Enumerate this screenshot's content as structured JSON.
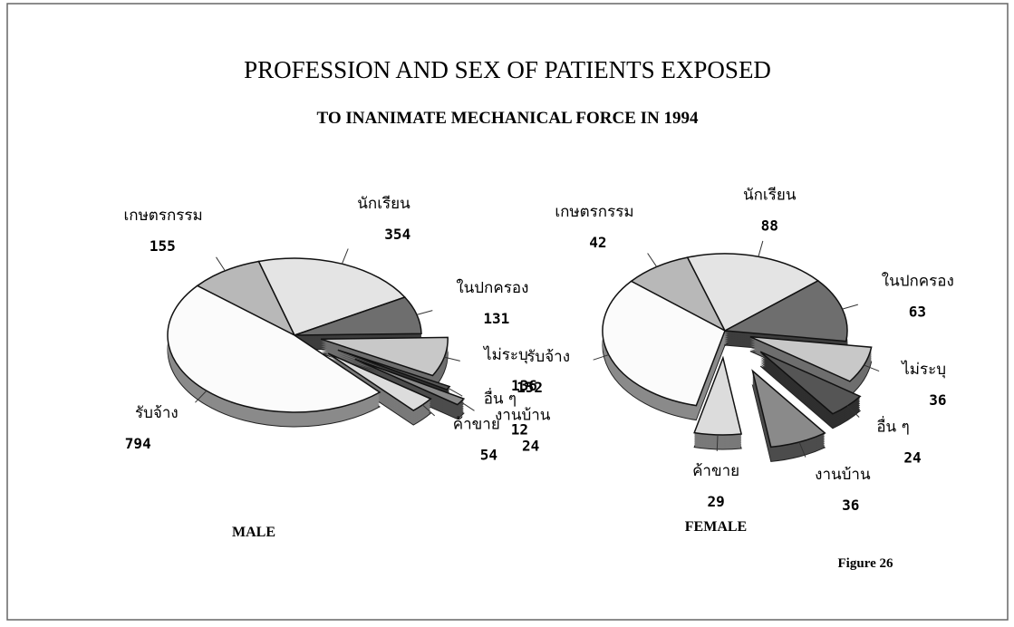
{
  "title": "PROFESSION AND SEX OF PATIENTS  EXPOSED",
  "subtitle": "TO INANIMATE MECHANICAL FORCE IN 1994",
  "figure_label": "Figure 26",
  "chart_data": [
    {
      "type": "pie",
      "title": "MALE",
      "categories": [
        "เกษตรกรรม",
        "นักเรียน",
        "ในปกครอง",
        "ไม่ระบุ",
        "อื่น ๆ",
        "งานบ้าน",
        "ค้าขาย",
        "รับจ้าง"
      ],
      "values": [
        155,
        354,
        131,
        136,
        12,
        24,
        54,
        794
      ],
      "colors": [
        "#b8b8b8",
        "#e4e4e4",
        "#6e6e6e",
        "#c8c8c8",
        "#555555",
        "#8a8a8a",
        "#dcdcdc",
        "#fbfbfb"
      ]
    },
    {
      "type": "pie",
      "title": "FEMALE",
      "categories": [
        "เกษตรกรรม",
        "นักเรียน",
        "ในปกครอง",
        "ไม่ระบุ",
        "อื่น ๆ",
        "งานบ้าน",
        "ค้าขาย",
        "รับจ้าง"
      ],
      "values": [
        42,
        88,
        63,
        36,
        24,
        36,
        29,
        152
      ],
      "colors": [
        "#b8b8b8",
        "#e4e4e4",
        "#6e6e6e",
        "#c8c8c8",
        "#555555",
        "#8a8a8a",
        "#dcdcdc",
        "#fbfbfb"
      ]
    }
  ]
}
